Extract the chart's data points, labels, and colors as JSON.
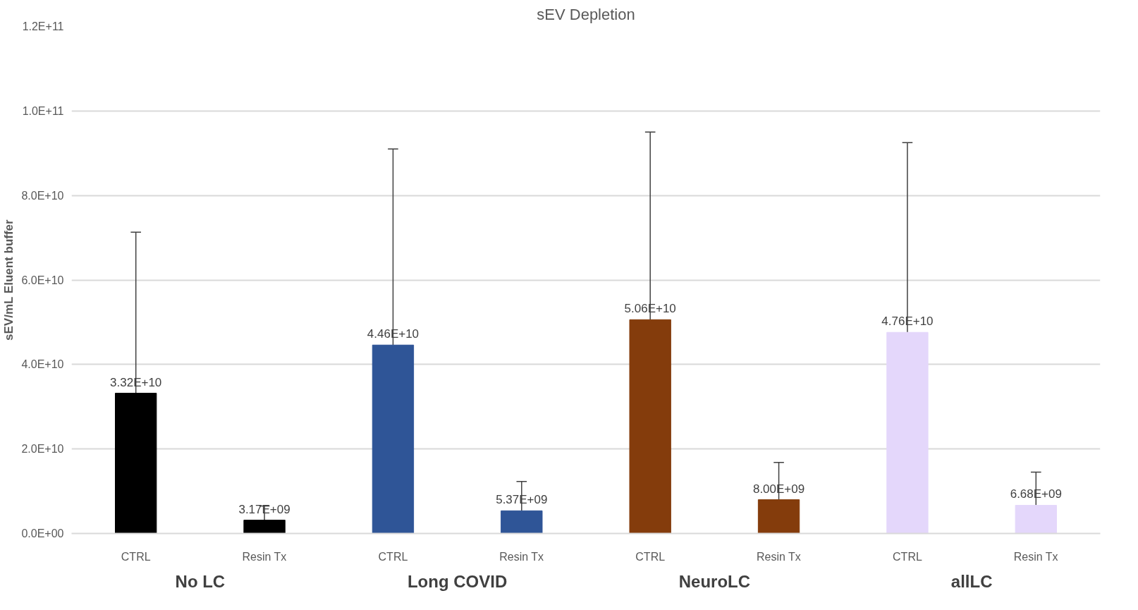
{
  "chart_data": {
    "type": "bar",
    "title": "sEV Depletion",
    "ylabel": "sEV/mL Eluent buffer",
    "categories": [
      "CTRL",
      "Resin Tx",
      "CTRL",
      "Resin Tx",
      "CTRL",
      "Resin Tx",
      "CTRL",
      "Resin Tx"
    ],
    "values": [
      33200000000.0,
      3170000000.0,
      44600000000.0,
      5370000000.0,
      50600000000.0,
      8000000000.0,
      47600000000.0,
      6680000000.0
    ],
    "colors": [
      "#000000",
      "#000000",
      "#2f5597",
      "#2f5597",
      "#843c0c",
      "#843c0c",
      "#e4d7fb",
      "#e4d7fb"
    ],
    "errors": [
      [
        33200000000.0,
        71300000000.0
      ],
      [
        3170000000.0,
        6500000000.0
      ],
      [
        44600000000.0,
        91000000000.0
      ],
      [
        5370000000.0,
        12300000000.0
      ],
      [
        50600000000.0,
        95000000000.0
      ],
      [
        8000000000.0,
        16800000000.0
      ],
      [
        47600000000.0,
        92500000000.0
      ],
      [
        6680000000.0,
        14500000000.0
      ]
    ],
    "value_labels": [
      "3.32E+10",
      "3.17E+09",
      "4.46E+10",
      "5.37E+09",
      "5.06E+10",
      "8.00E+09",
      "4.76E+10",
      "6.68E+09"
    ],
    "annotations": [
      "No LC",
      "Long COVID",
      "NeuroLC",
      "allLC"
    ],
    "ylim": [
      0,
      120000000000.0
    ],
    "yticks": [
      {
        "value": 0,
        "label": "0.0E+00"
      },
      {
        "value": 20000000000.0,
        "label": "2.0E+10"
      },
      {
        "value": 40000000000.0,
        "label": "4.0E+10"
      },
      {
        "value": 60000000000.0,
        "label": "6.0E+10"
      },
      {
        "value": 80000000000.0,
        "label": "8.0E+10"
      },
      {
        "value": 100000000000.0,
        "label": "1.0E+11"
      },
      {
        "value": 120000000000.0,
        "label": "1.2E+11"
      }
    ],
    "grid": "y"
  }
}
